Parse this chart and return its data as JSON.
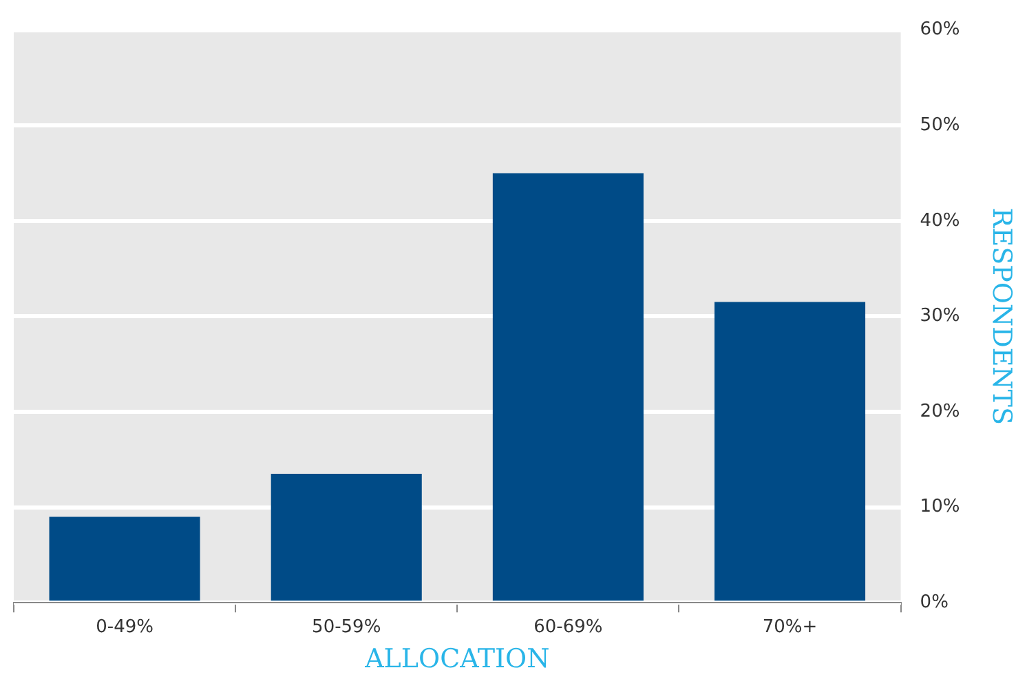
{
  "chart_data": {
    "type": "bar",
    "xlabel": "ALLOCATION",
    "ylabel": "RESPONDENTS",
    "categories": [
      "0-49%",
      "50-59%",
      "60-69%",
      "70%+"
    ],
    "values": [
      9,
      13.5,
      45,
      31.5
    ],
    "color": "#004b87",
    "ylim": [
      0,
      60
    ],
    "yticks": [
      {
        "value": 0,
        "label": "0%"
      },
      {
        "value": 10,
        "label": "10%"
      },
      {
        "value": 20,
        "label": "20%"
      },
      {
        "value": 30,
        "label": "30%"
      },
      {
        "value": 40,
        "label": "40%"
      },
      {
        "value": 50,
        "label": "50%"
      },
      {
        "value": 60,
        "label": "60%"
      }
    ],
    "grid": "y",
    "legend": false
  }
}
